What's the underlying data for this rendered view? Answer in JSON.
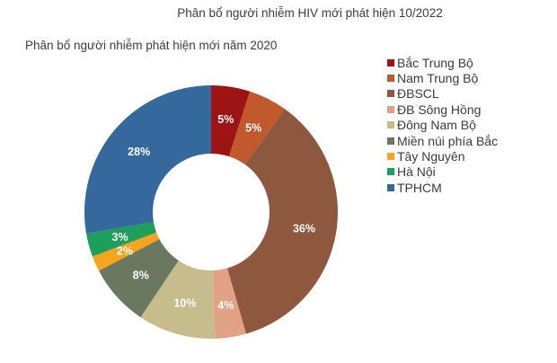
{
  "header": {
    "title": "Phân bổ người nhiễm HIV mới phát hiện 10/2022",
    "subtitle": "Phân bổ người nhiễm phát hiện mới năm 2020"
  },
  "chart_data": {
    "type": "pie",
    "subtype": "donut",
    "title": "Phân bổ người nhiễm HIV mới phát hiện 10/2022",
    "subtitle": "Phân bổ người nhiễm phát hiện mới năm 2020",
    "categories": [
      "Bắc Trung Bộ",
      "Nam Trung Bộ",
      "ĐBSCL",
      "ĐB Sông Hồng",
      "Đông Nam Bộ",
      "Miền núi phía Bắc",
      "Tây Nguyên",
      "Hà Nội",
      "TPHCM"
    ],
    "values": [
      5,
      5,
      36,
      4,
      10,
      8,
      2,
      3,
      28
    ],
    "data_labels": [
      "5%",
      "5%",
      "36%",
      "4%",
      "10%",
      "8%",
      "2%",
      "3%",
      "28%"
    ],
    "colors": [
      "#9E1313",
      "#C1592C",
      "#8D583E",
      "#E2A084",
      "#C7BC8B",
      "#69785F",
      "#F7A41D",
      "#1E9E5B",
      "#35689C"
    ],
    "start_angle_deg": 0,
    "direction": "clockwise",
    "inner_radius_ratio": 0.46,
    "data_label_color": "#FFFFFF",
    "legend_position": "right",
    "background_color": "#FFFFFF"
  }
}
